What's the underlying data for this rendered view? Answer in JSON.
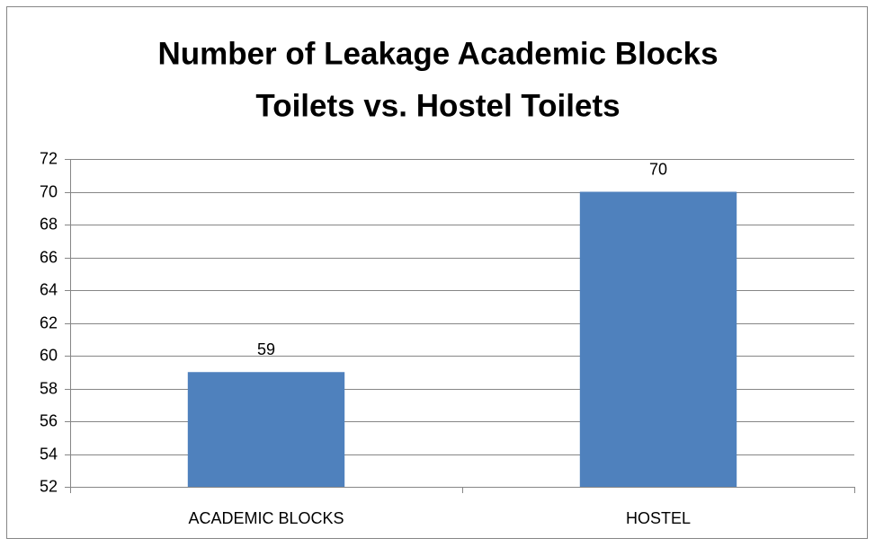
{
  "chart_data": {
    "type": "bar",
    "title": [
      "Number of Leakage Academic Blocks",
      "Toilets vs. Hostel Toilets"
    ],
    "categories": [
      "ACADEMIC BLOCKS",
      "HOSTEL"
    ],
    "values": [
      59,
      70
    ],
    "color": "#4f81bd",
    "ylim": [
      52,
      72
    ],
    "yticks": [
      52,
      54,
      56,
      58,
      60,
      62,
      64,
      66,
      68,
      70,
      72
    ],
    "grid": true
  }
}
